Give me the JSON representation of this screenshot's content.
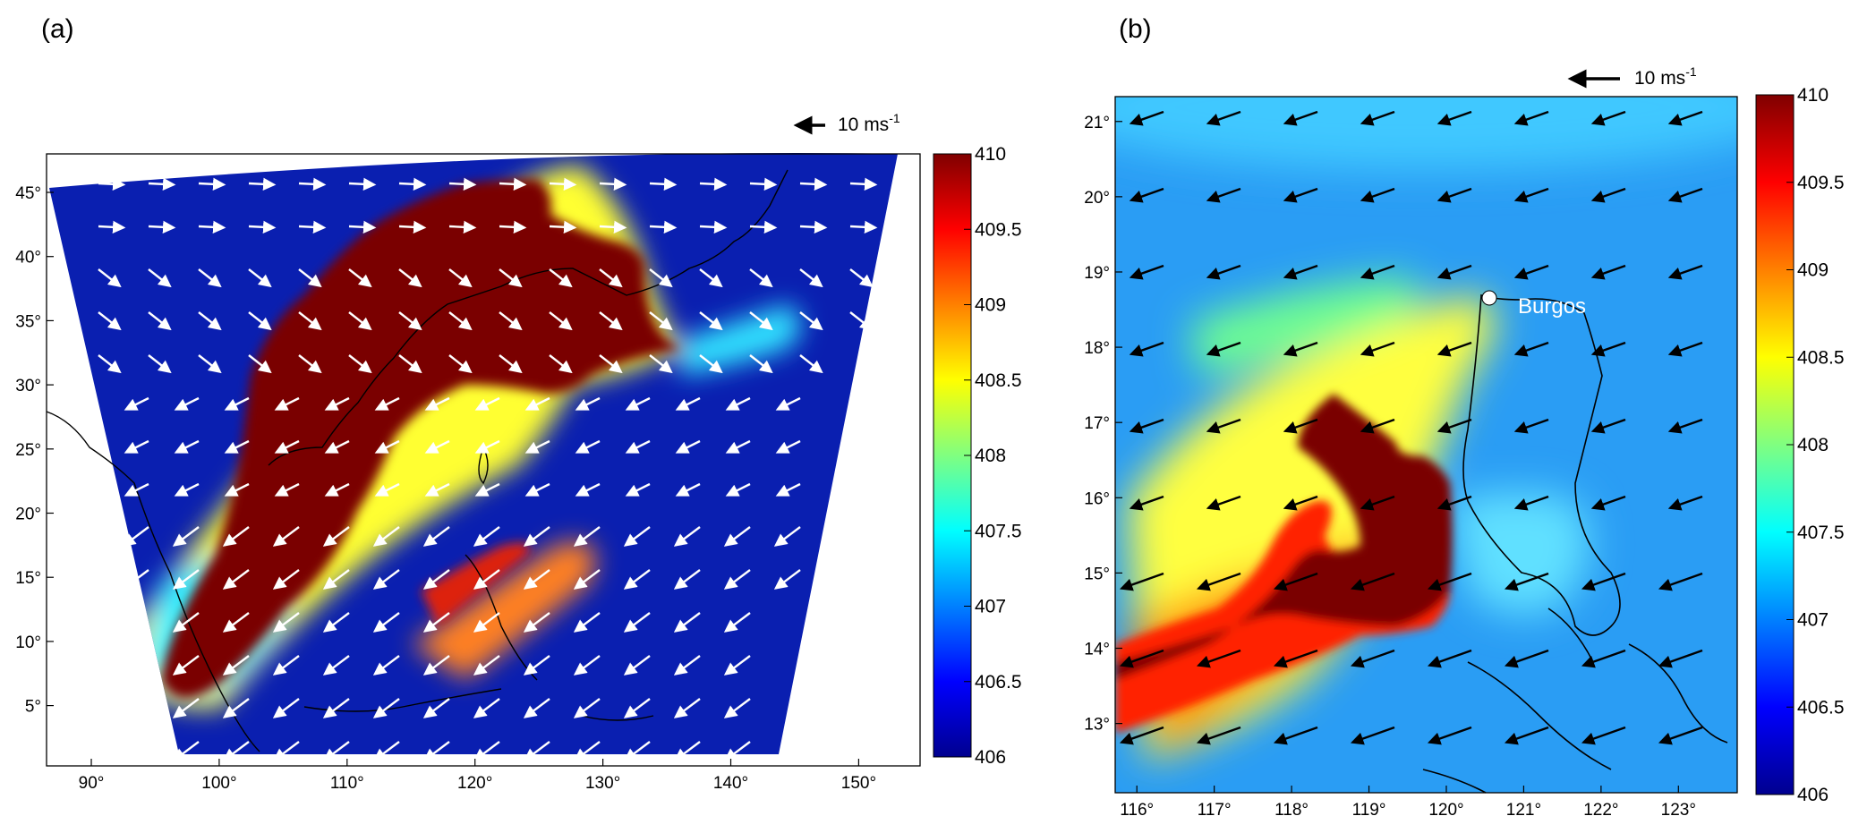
{
  "colorbar": {
    "colors": [
      "#00008f",
      "#0000ff",
      "#0080ff",
      "#00ffff",
      "#80ff80",
      "#ffff00",
      "#ff8000",
      "#ff0000",
      "#800000"
    ]
  },
  "panel_a": {
    "label": "(a)",
    "reference_vector_label": "10 ms",
    "reference_vector_exponent": "-1",
    "lon_ticks": [
      90,
      100,
      110,
      120,
      130,
      140,
      150
    ],
    "lon_tick_labels": [
      "90°",
      "100°",
      "110°",
      "120°",
      "130°",
      "140°",
      "150°"
    ],
    "lat_ticks": [
      5,
      10,
      15,
      20,
      25,
      30,
      35,
      40,
      45
    ],
    "lat_tick_labels": [
      "5°",
      "10°",
      "15°",
      "20°",
      "25°",
      "30°",
      "35°",
      "40°",
      "45°"
    ],
    "colorbar_ticks": [
      410,
      409.5,
      409,
      408.5,
      408,
      407.5,
      407,
      406.5,
      406
    ],
    "colorbar_tick_labels": [
      "410",
      "409.5",
      "409",
      "408.5",
      "408",
      "407.5",
      "407",
      "406.5",
      "406"
    ],
    "vector_color": "#ffffff",
    "background_color": "#0a1fb0"
  },
  "panel_b": {
    "label": "(b)",
    "reference_vector_label": "10 ms",
    "reference_vector_exponent": "-1",
    "lon_ticks": [
      116,
      117,
      118,
      119,
      120,
      121,
      122,
      123
    ],
    "lon_tick_labels": [
      "116°",
      "117°",
      "118°",
      "119°",
      "120°",
      "121°",
      "122°",
      "123°"
    ],
    "lat_ticks": [
      13,
      14,
      15,
      16,
      17,
      18,
      19,
      20,
      21
    ],
    "lat_tick_labels": [
      "13°",
      "14°",
      "15°",
      "16°",
      "17°",
      "18°",
      "19°",
      "20°",
      "21°"
    ],
    "colorbar_ticks": [
      410,
      409.5,
      409,
      408.5,
      408,
      407.5,
      407,
      406.5,
      406
    ],
    "colorbar_tick_labels": [
      "410",
      "409.5",
      "409",
      "408.5",
      "408",
      "407.5",
      "407",
      "406.5",
      "406"
    ],
    "site": {
      "name": "Burgos",
      "lon": 120.6,
      "lat": 18.5
    },
    "vector_color": "#000000",
    "background_color": "#2a9df4"
  }
}
